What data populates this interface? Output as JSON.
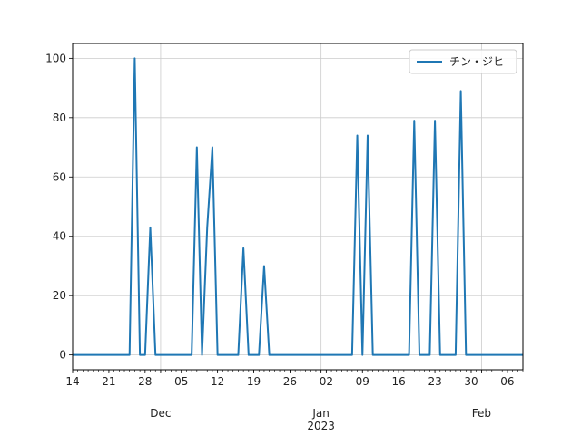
{
  "chart_data": {
    "type": "line",
    "title": "",
    "xlabel": "",
    "ylabel": "",
    "legend_position": "top-right",
    "grid": true,
    "x_range": [
      "2022-11-14",
      "2023-02-09"
    ],
    "ylim": [
      -5,
      105
    ],
    "yticks": [
      0,
      20,
      40,
      60,
      80,
      100
    ],
    "xticks": [
      {
        "date": "2022-11-14",
        "label": "14"
      },
      {
        "date": "2022-11-21",
        "label": "21"
      },
      {
        "date": "2022-11-28",
        "label": "28"
      },
      {
        "date": "2022-12-05",
        "label": "05"
      },
      {
        "date": "2022-12-12",
        "label": "12"
      },
      {
        "date": "2022-12-19",
        "label": "19"
      },
      {
        "date": "2022-12-26",
        "label": "26"
      },
      {
        "date": "2023-01-02",
        "label": "02"
      },
      {
        "date": "2023-01-09",
        "label": "09"
      },
      {
        "date": "2023-01-16",
        "label": "16"
      },
      {
        "date": "2023-01-23",
        "label": "23"
      },
      {
        "date": "2023-01-30",
        "label": "30"
      },
      {
        "date": "2023-02-06",
        "label": "06"
      }
    ],
    "month_labels": [
      {
        "date": "2022-12-01",
        "label": "Dec"
      },
      {
        "date": "2023-01-01",
        "label": "Jan\n2023"
      },
      {
        "date": "2023-02-01",
        "label": "Feb"
      }
    ],
    "series": [
      {
        "name": "チン・ジヒ",
        "color": "#1f77b4",
        "points": [
          [
            "2022-11-14",
            0
          ],
          [
            "2022-11-25",
            0
          ],
          [
            "2022-11-26",
            100
          ],
          [
            "2022-11-27",
            0
          ],
          [
            "2022-11-28",
            0
          ],
          [
            "2022-11-29",
            43
          ],
          [
            "2022-11-30",
            0
          ],
          [
            "2022-12-07",
            0
          ],
          [
            "2022-12-08",
            70
          ],
          [
            "2022-12-09",
            0
          ],
          [
            "2022-12-10",
            43
          ],
          [
            "2022-12-11",
            70
          ],
          [
            "2022-12-12",
            0
          ],
          [
            "2022-12-16",
            0
          ],
          [
            "2022-12-17",
            36
          ],
          [
            "2022-12-18",
            0
          ],
          [
            "2022-12-20",
            0
          ],
          [
            "2022-12-21",
            30
          ],
          [
            "2022-12-22",
            0
          ],
          [
            "2023-01-07",
            0
          ],
          [
            "2023-01-08",
            74
          ],
          [
            "2023-01-09",
            0
          ],
          [
            "2023-01-10",
            74
          ],
          [
            "2023-01-11",
            0
          ],
          [
            "2023-01-18",
            0
          ],
          [
            "2023-01-19",
            79
          ],
          [
            "2023-01-20",
            0
          ],
          [
            "2023-01-22",
            0
          ],
          [
            "2023-01-23",
            79
          ],
          [
            "2023-01-24",
            0
          ],
          [
            "2023-01-27",
            0
          ],
          [
            "2023-01-28",
            89
          ],
          [
            "2023-01-29",
            0
          ],
          [
            "2023-02-09",
            0
          ]
        ]
      }
    ]
  }
}
